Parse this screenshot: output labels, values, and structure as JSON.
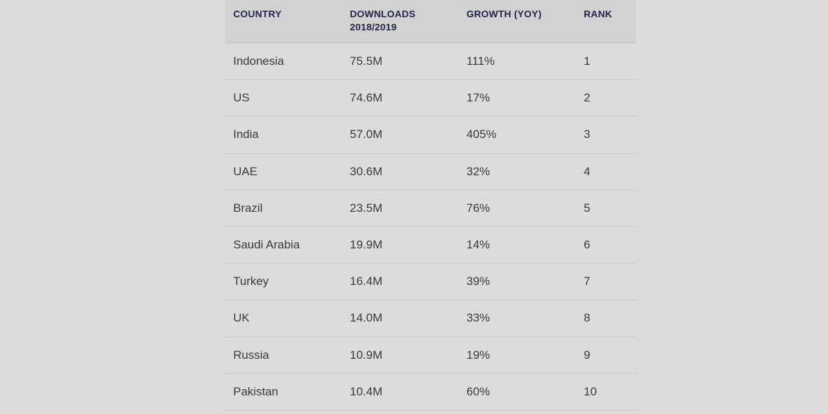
{
  "table": {
    "headers": {
      "country": "COUNTRY",
      "downloads_line1": "DOWNLOADS",
      "downloads_line2": "2018/2019",
      "growth": "GROWTH (YOY)",
      "rank": "RANK"
    },
    "rows": [
      {
        "country": "Indonesia",
        "downloads": "75.5M",
        "growth": "111%",
        "rank": "1"
      },
      {
        "country": "US",
        "downloads": "74.6M",
        "growth": "17%",
        "rank": "2"
      },
      {
        "country": "India",
        "downloads": "57.0M",
        "growth": "405%",
        "rank": "3"
      },
      {
        "country": "UAE",
        "downloads": "30.6M",
        "growth": "32%",
        "rank": "4"
      },
      {
        "country": "Brazil",
        "downloads": "23.5M",
        "growth": "76%",
        "rank": "5"
      },
      {
        "country": "Saudi Arabia",
        "downloads": "19.9M",
        "growth": "14%",
        "rank": "6"
      },
      {
        "country": "Turkey",
        "downloads": "16.4M",
        "growth": "39%",
        "rank": "7"
      },
      {
        "country": "UK",
        "downloads": "14.0M",
        "growth": "33%",
        "rank": "8"
      },
      {
        "country": "Russia",
        "downloads": "10.9M",
        "growth": "19%",
        "rank": "9"
      },
      {
        "country": "Pakistan",
        "downloads": "10.4M",
        "growth": "60%",
        "rank": "10"
      }
    ]
  },
  "colors": {
    "background": "#dcdcdc",
    "header_background": "#d2d2d2",
    "header_text": "#23264a",
    "body_text": "#3a3a3a"
  }
}
